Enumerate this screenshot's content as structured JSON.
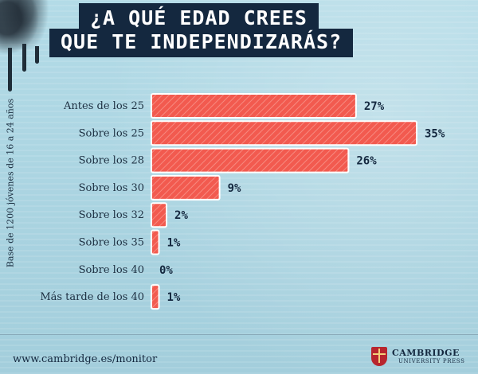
{
  "header": {
    "title_line1": "¿A QUÉ EDAD CREES",
    "title_line2": "QUE TE INDEPENDIZARÁS?"
  },
  "side_note": "Base de 1200 jóvenes de 16 a 24 años",
  "footer": {
    "url": "www.cambridge.es/monitor",
    "logo_name": "CAMBRIDGE",
    "logo_sub": "UNIVERSITY PRESS",
    "logo_icon": "shield-crest-icon"
  },
  "colors": {
    "bar": "#f25a4f",
    "bar_hatch": "#f78a80",
    "bar_border": "#ffffff",
    "title_bg": "#14283f",
    "text": "#1c2f41"
  },
  "chart_data": {
    "type": "bar",
    "orientation": "horizontal",
    "title": "¿A QUÉ EDAD CREES QUE TE INDEPENDIZARÁS?",
    "categories": [
      "Antes de los 25",
      "Sobre los 25",
      "Sobre los 28",
      "Sobre los 30",
      "Sobre los 32",
      "Sobre los 35",
      "Sobre los 40",
      "Más tarde de los 40"
    ],
    "values": [
      27,
      35,
      26,
      9,
      2,
      1,
      0,
      1
    ],
    "value_labels": [
      "27%",
      "35%",
      "26%",
      "9%",
      "2%",
      "1%",
      "0%",
      "1%"
    ],
    "unit": "%",
    "xlim": [
      0,
      35
    ],
    "grid": false,
    "legend": "none"
  }
}
